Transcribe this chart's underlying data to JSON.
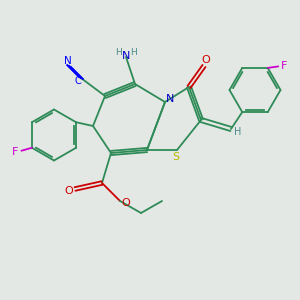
{
  "bg_color": "#e4e8e4",
  "atom_colors": {
    "N": "#0000cc",
    "O": "#cc0000",
    "S": "#b8b800",
    "F": "#cc00cc",
    "C_green": "#2e8b57",
    "CN_blue": "#0000ff",
    "H": "#4a8a8a"
  },
  "bond_color": "#2e8b57",
  "lw": 1.3
}
